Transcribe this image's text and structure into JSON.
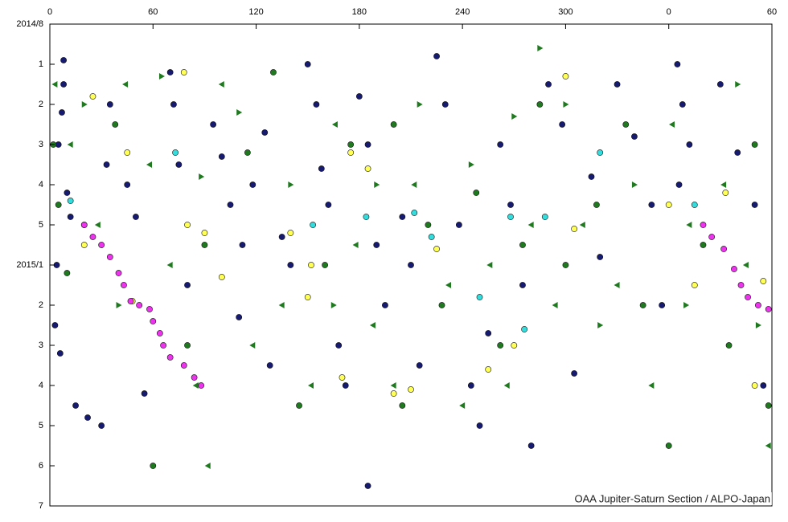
{
  "chart_data": {
    "type": "scatter",
    "credit": "OAA Jupiter-Saturn Section / ALPO-Japan",
    "xlim": [
      0,
      420
    ],
    "xticks": [
      0,
      60,
      120,
      180,
      240,
      300,
      {
        "value": 360,
        "label": "0"
      },
      {
        "value": 420,
        "label": "60"
      }
    ],
    "ylim": [
      0,
      12
    ],
    "y_reversed": true,
    "yticks": [
      {
        "value": 0,
        "label": "2014/8"
      },
      1,
      2,
      3,
      4,
      5,
      {
        "value": 6,
        "label": "2015/1"
      },
      {
        "value": 7,
        "label": "2"
      },
      {
        "value": 8,
        "label": "3"
      },
      {
        "value": 9,
        "label": "4"
      },
      {
        "value": 10,
        "label": "5"
      },
      {
        "value": 11,
        "label": "6"
      },
      {
        "value": 12,
        "label": "7"
      }
    ],
    "series": [
      {
        "color": "#161a70",
        "marker": "circle",
        "x": [
          8,
          8,
          7,
          5,
          10,
          12,
          4,
          3,
          6,
          15,
          30,
          22,
          35,
          33,
          45,
          50,
          55,
          70,
          72,
          75,
          80,
          95,
          100,
          105,
          112,
          110,
          118,
          125,
          135,
          140,
          128,
          150,
          155,
          158,
          162,
          168,
          172,
          180,
          185,
          190,
          195,
          185,
          205,
          210,
          215,
          225,
          230,
          238,
          245,
          250,
          255,
          262,
          268,
          275,
          280,
          290,
          298,
          305,
          315,
          320,
          330,
          340,
          350,
          356,
          365,
          368,
          372,
          366,
          390,
          400,
          410,
          415
        ],
        "values": [
          0.9,
          1.5,
          2.2,
          3.0,
          4.2,
          4.8,
          6.0,
          7.5,
          8.2,
          9.5,
          10.0,
          9.8,
          2.0,
          3.5,
          4.0,
          4.8,
          9.2,
          1.2,
          2.0,
          3.5,
          6.5,
          2.5,
          3.3,
          4.5,
          5.5,
          7.3,
          4.0,
          2.7,
          5.3,
          6.0,
          8.5,
          1.0,
          2.0,
          3.6,
          4.5,
          8.0,
          9.0,
          1.8,
          3.0,
          5.5,
          7.0,
          11.5,
          4.8,
          6.0,
          8.5,
          0.8,
          2.0,
          5.0,
          9.0,
          10.0,
          7.7,
          3.0,
          4.5,
          6.5,
          10.5,
          1.5,
          2.5,
          8.7,
          3.8,
          5.8,
          1.5,
          2.8,
          4.5,
          7.0,
          1.0,
          2.0,
          3.0,
          4.0,
          1.5,
          3.2,
          4.5,
          9.0
        ]
      },
      {
        "color": "#1f7a1f",
        "marker": "circle",
        "x": [
          2,
          5,
          10,
          20,
          38,
          60,
          80,
          90,
          115,
          130,
          145,
          160,
          175,
          200,
          205,
          220,
          228,
          248,
          262,
          275,
          285,
          300,
          318,
          335,
          345,
          360,
          380,
          395,
          410,
          418
        ],
        "values": [
          3.0,
          4.5,
          6.2,
          5.0,
          2.5,
          11.0,
          8.0,
          5.5,
          3.2,
          1.2,
          9.5,
          6.0,
          3.0,
          2.5,
          9.5,
          5.0,
          7.0,
          4.2,
          8.0,
          5.5,
          2.0,
          6.0,
          4.5,
          2.5,
          7.0,
          10.5,
          5.5,
          8.0,
          3.0,
          9.5
        ]
      },
      {
        "color": "#1f7a1f",
        "marker": "triangle-left",
        "x": [
          3,
          12,
          28,
          44,
          58,
          70,
          85,
          92,
          100,
          118,
          135,
          152,
          166,
          178,
          188,
          200,
          212,
          232,
          240,
          256,
          266,
          280,
          294,
          310,
          330,
          350,
          362,
          372,
          392,
          405,
          418
        ],
        "values": [
          1.5,
          3.0,
          5.0,
          1.5,
          3.5,
          6.0,
          9.0,
          11.0,
          1.5,
          8.0,
          7.0,
          9.0,
          2.5,
          5.5,
          7.5,
          9.0,
          4.0,
          6.5,
          9.5,
          6.0,
          9.0,
          5.0,
          7.0,
          5.0,
          6.5,
          9.0,
          2.5,
          5.0,
          4.0,
          6.0,
          10.5
        ]
      },
      {
        "color": "#1f7a1f",
        "marker": "triangle-right",
        "x": [
          20,
          40,
          65,
          88,
          110,
          140,
          165,
          190,
          215,
          245,
          270,
          300,
          320,
          340,
          370,
          400,
          412,
          285
        ],
        "values": [
          2.0,
          7.0,
          1.3,
          3.8,
          2.2,
          4.0,
          7.0,
          4.0,
          2.0,
          3.5,
          2.3,
          2.0,
          7.5,
          4.0,
          7.0,
          1.5,
          7.5,
          0.6
        ]
      },
      {
        "color": "#ffff55",
        "marker": "circle",
        "x": [
          20,
          25,
          45,
          48,
          78,
          80,
          90,
          100,
          140,
          150,
          152,
          170,
          175,
          185,
          200,
          210,
          225,
          255,
          270,
          300,
          305,
          360,
          375,
          393,
          410,
          415
        ],
        "values": [
          5.5,
          1.8,
          3.2,
          6.9,
          1.2,
          5.0,
          5.2,
          6.3,
          5.2,
          6.8,
          6.0,
          8.8,
          3.2,
          3.6,
          9.2,
          9.1,
          5.6,
          8.6,
          8.0,
          1.3,
          5.1,
          4.5,
          6.5,
          4.2,
          9.0,
          6.4
        ]
      },
      {
        "color": "#33dddd",
        "marker": "circle",
        "x": [
          12,
          73,
          153,
          184,
          212,
          222,
          250,
          268,
          276,
          288,
          320,
          375
        ],
        "values": [
          4.4,
          3.2,
          5.0,
          4.8,
          4.7,
          5.3,
          6.8,
          4.8,
          7.6,
          4.8,
          3.2,
          4.5
        ]
      },
      {
        "color": "#ee33ee",
        "marker": "circle",
        "x": [
          20,
          25,
          30,
          35,
          40,
          43,
          47,
          52,
          58,
          60,
          64,
          66,
          70,
          78,
          84,
          88,
          380,
          385,
          392,
          398,
          402,
          406,
          412,
          418
        ],
        "values": [
          5.0,
          5.3,
          5.5,
          5.8,
          6.2,
          6.5,
          6.9,
          7.0,
          7.1,
          7.4,
          7.7,
          8.0,
          8.3,
          8.5,
          8.8,
          9.0,
          5.0,
          5.3,
          5.6,
          6.1,
          6.5,
          6.8,
          7.0,
          7.1
        ]
      }
    ]
  }
}
